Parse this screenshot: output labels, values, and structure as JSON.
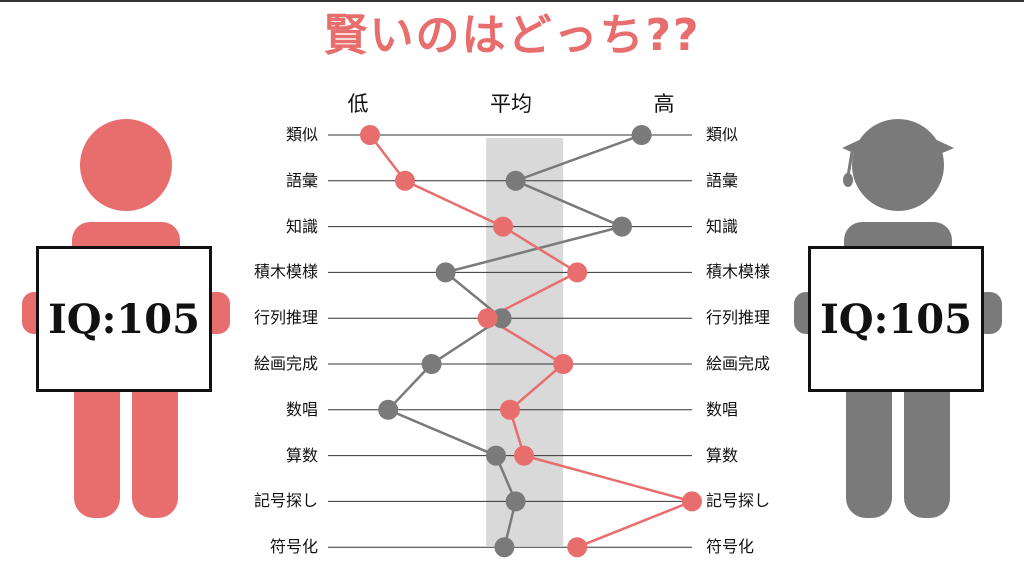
{
  "title": "賢いのはどっち??",
  "colors": {
    "red": "#e86d6d",
    "gray": "#7a7a7a",
    "band": "#d9d9d9",
    "line": "#333333"
  },
  "scale_labels": {
    "low": "低",
    "mid": "平均",
    "high": "高"
  },
  "left_person": {
    "icon": "person-icon",
    "iq_label": "IQ:105"
  },
  "right_person": {
    "icon": "graduate-person-icon",
    "iq_label": "IQ:105"
  },
  "chart_data": {
    "type": "line",
    "categories": [
      "類似",
      "語彙",
      "知識",
      "積木模様",
      "行列推理",
      "絵画完成",
      "数唱",
      "算数",
      "記号探し",
      "符号化"
    ],
    "x_scale": [
      "低",
      "平均",
      "高"
    ],
    "average_band": [
      0.465,
      0.74
    ],
    "series": [
      {
        "color": "#e86d6d",
        "values": [
          0.05,
          0.175,
          0.525,
          0.79,
          0.47,
          0.74,
          0.55,
          0.6,
          1.2,
          0.79
        ]
      },
      {
        "color": "#7a7a7a",
        "values": [
          1.02,
          0.57,
          0.95,
          0.32,
          0.52,
          0.27,
          0.115,
          0.5,
          0.57,
          0.53
        ]
      }
    ]
  }
}
